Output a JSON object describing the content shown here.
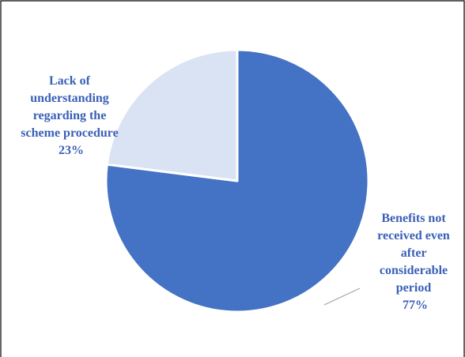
{
  "chart_data": {
    "type": "pie",
    "title": "",
    "start_angle_deg": 0,
    "direction": "clockwise",
    "legend": "none",
    "slices": [
      {
        "label_lines": [
          "Benefits not",
          "received even",
          "after",
          "considerable",
          "period"
        ],
        "percent_label": "77%",
        "value": 77,
        "color": "#4472c4"
      },
      {
        "label_lines": [
          "Lack of",
          "understanding",
          "regarding the",
          "scheme procedure"
        ],
        "percent_label": "23%",
        "value": 23,
        "color": "#dae3f3"
      }
    ],
    "label_color": "#3a5fb8",
    "leader_line_color": "#a6a6a6",
    "border_color": "#000000"
  }
}
